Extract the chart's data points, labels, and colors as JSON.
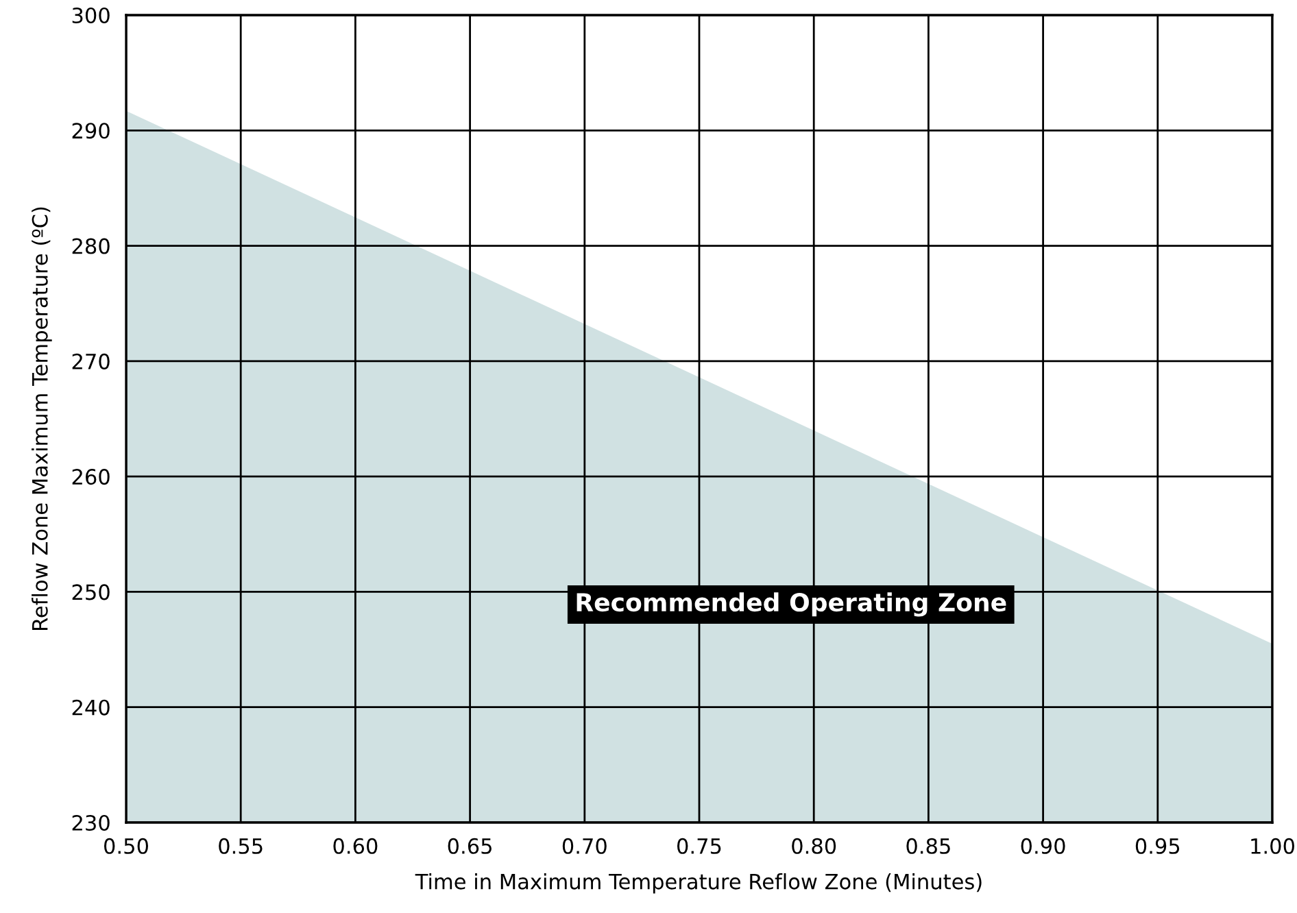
{
  "chart_data": {
    "type": "area",
    "xlabel": "Time in Maximum Temperature Reflow Zone (Minutes)",
    "ylabel": "Reflow Zone Maximum Temperature (ºC)",
    "x": [
      0.5,
      1.0
    ],
    "series": [
      {
        "color": "#d0e1e2",
        "values": [
          291.7,
          245.5
        ]
      }
    ],
    "xlim": [
      0.5,
      1.0
    ],
    "ylim": [
      230,
      300
    ],
    "xticks": [
      {
        "value": 0.5,
        "label": "0.50"
      },
      {
        "value": 0.55,
        "label": "0.55"
      },
      {
        "value": 0.6,
        "label": "0.60"
      },
      {
        "value": 0.65,
        "label": "0.65"
      },
      {
        "value": 0.7,
        "label": "0.70"
      },
      {
        "value": 0.75,
        "label": "0.75"
      },
      {
        "value": 0.8,
        "label": "0.80"
      },
      {
        "value": 0.85,
        "label": "0.85"
      },
      {
        "value": 0.9,
        "label": "0.90"
      },
      {
        "value": 0.95,
        "label": "0.95"
      },
      {
        "value": 1.0,
        "label": "1.00"
      }
    ],
    "yticks": [
      230,
      240,
      250,
      260,
      270,
      280,
      290,
      300
    ],
    "grid": true,
    "annotations": [
      "Recommended Operating Zone"
    ]
  }
}
